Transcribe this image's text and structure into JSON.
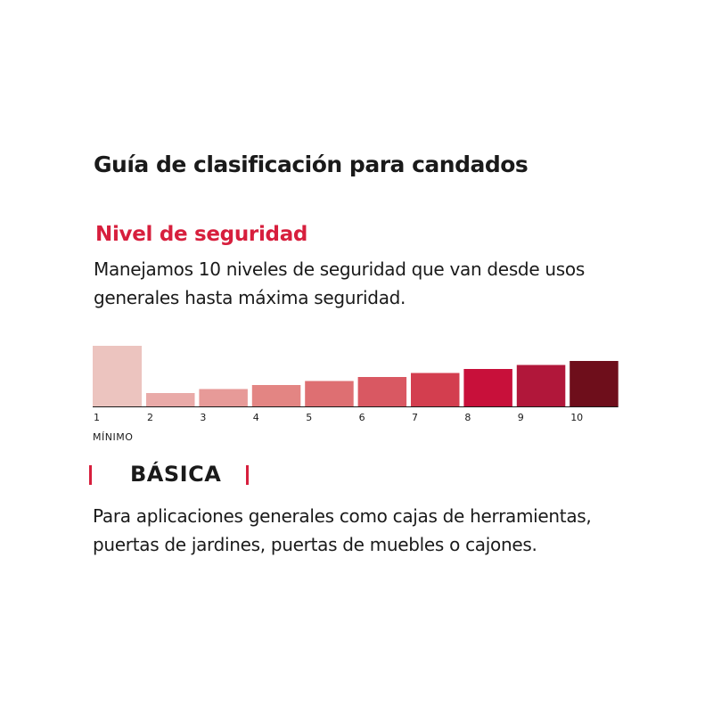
{
  "title": "Guía de clasificación para candados",
  "subtitle": "Nivel de seguridad",
  "description_lines": [
    "Manejamos 10 niveles de seguridad que van desde usos",
    "generales hasta máxima seguridad."
  ],
  "scale": {
    "levels": [
      {
        "label": "1",
        "color": "#ecc4bf",
        "selected": true
      },
      {
        "label": "2",
        "color": "#e9aaa8"
      },
      {
        "label": "3",
        "color": "#e79a98"
      },
      {
        "label": "4",
        "color": "#e38583"
      },
      {
        "label": "5",
        "color": "#de6f72"
      },
      {
        "label": "6",
        "color": "#d95862"
      },
      {
        "label": "7",
        "color": "#d33e4f"
      },
      {
        "label": "8",
        "color": "#c8103a"
      },
      {
        "label": "9",
        "color": "#b1173a"
      },
      {
        "label": "10",
        "color": "#6e0e1b"
      }
    ],
    "min_label": "MÍNIMO",
    "axis_color": "#1a1a1a"
  },
  "selected_level": {
    "name": "BÁSICA",
    "marker_color": "#d71f3d",
    "description_lines": [
      "Para aplicaciones generales como cajas de herramientas,",
      "puertas de jardines, puertas de muebles o cajones."
    ]
  },
  "colors": {
    "accent": "#d71f3d",
    "text": "#1a1a1a"
  }
}
